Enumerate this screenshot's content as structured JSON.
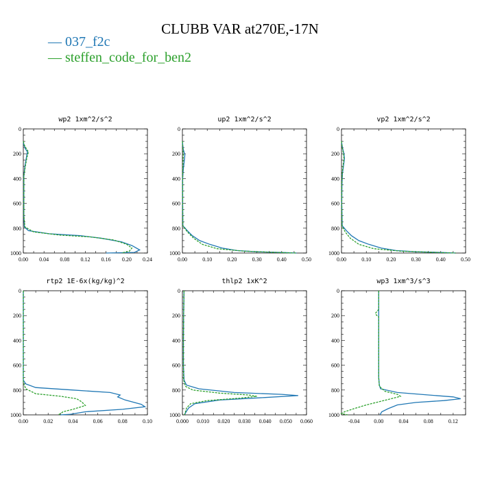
{
  "title": "CLUBB VAR at270E,-17N",
  "legend": [
    {
      "label": "— 037_f2c",
      "color": "#1f77b4"
    },
    {
      "label": "— steffen_code_for_ben2",
      "color": "#2ca02c"
    }
  ],
  "chart_data": [
    {
      "type": "line",
      "title": "wp2  1xm^2/s^2",
      "xlim": [
        0,
        0.24
      ],
      "ylim": [
        1000,
        0
      ],
      "xticks": [
        "0.00",
        "0.04",
        "0.08",
        "0.12",
        "0.16",
        "0.20",
        "0.24"
      ],
      "xtick_values": [
        0,
        0.04,
        0.08,
        0.12,
        0.16,
        0.2,
        0.24
      ],
      "yticks": [
        0,
        200,
        400,
        600,
        800,
        1000
      ],
      "series": [
        {
          "name": "037_f2c",
          "color": "#1f77b4",
          "dashed": false,
          "points": [
            [
              0.0,
              100
            ],
            [
              0.001,
              130
            ],
            [
              0.004,
              160
            ],
            [
              0.008,
              185
            ],
            [
              0.006,
              230
            ],
            [
              0.003,
              300
            ],
            [
              0.001,
              380
            ],
            [
              0.001,
              500
            ],
            [
              0.001,
              700
            ],
            [
              0.002,
              790
            ],
            [
              0.01,
              820
            ],
            [
              0.05,
              845
            ],
            [
              0.11,
              860
            ],
            [
              0.15,
              880
            ],
            [
              0.19,
              910
            ],
            [
              0.21,
              940
            ],
            [
              0.225,
              975
            ],
            [
              0.215,
              995
            ],
            [
              0.16,
              1000
            ]
          ]
        },
        {
          "name": "steffen_code_for_ben2",
          "color": "#2ca02c",
          "dashed": true,
          "points": [
            [
              0.0,
              100
            ],
            [
              0.002,
              130
            ],
            [
              0.006,
              160
            ],
            [
              0.01,
              185
            ],
            [
              0.007,
              230
            ],
            [
              0.004,
              300
            ],
            [
              0.001,
              380
            ],
            [
              0.001,
              500
            ],
            [
              0.001,
              700
            ],
            [
              0.003,
              790
            ],
            [
              0.02,
              830
            ],
            [
              0.07,
              855
            ],
            [
              0.13,
              870
            ],
            [
              0.175,
              895
            ],
            [
              0.2,
              930
            ],
            [
              0.21,
              960
            ],
            [
              0.205,
              985
            ],
            [
              0.19,
              1000
            ]
          ]
        }
      ]
    },
    {
      "type": "line",
      "title": "up2  1xm^2/s^2",
      "xlim": [
        0,
        0.5
      ],
      "ylim": [
        1000,
        0
      ],
      "xticks": [
        "0.00",
        "0.10",
        "0.20",
        "0.30",
        "0.40",
        "0.50"
      ],
      "xtick_values": [
        0,
        0.1,
        0.2,
        0.3,
        0.4,
        0.5
      ],
      "yticks": [
        0,
        200,
        400,
        600,
        800,
        1000
      ],
      "series": [
        {
          "name": "037_f2c",
          "color": "#1f77b4",
          "dashed": false,
          "points": [
            [
              0.0,
              100
            ],
            [
              0.003,
              160
            ],
            [
              0.01,
              210
            ],
            [
              0.008,
              250
            ],
            [
              0.005,
              300
            ],
            [
              0.003,
              340
            ],
            [
              0.001,
              400
            ],
            [
              0.001,
              600
            ],
            [
              0.002,
              780
            ],
            [
              0.02,
              820
            ],
            [
              0.04,
              860
            ],
            [
              0.07,
              900
            ],
            [
              0.11,
              930
            ],
            [
              0.16,
              960
            ],
            [
              0.22,
              980
            ],
            [
              0.3,
              990
            ],
            [
              0.4,
              995
            ],
            [
              0.46,
              1000
            ]
          ]
        },
        {
          "name": "steffen_code_for_ben2",
          "color": "#2ca02c",
          "dashed": true,
          "points": [
            [
              0.0,
              100
            ],
            [
              0.002,
              160
            ],
            [
              0.004,
              210
            ],
            [
              0.003,
              250
            ],
            [
              0.002,
              300
            ],
            [
              0.001,
              400
            ],
            [
              0.001,
              600
            ],
            [
              0.002,
              780
            ],
            [
              0.02,
              830
            ],
            [
              0.045,
              880
            ],
            [
              0.08,
              930
            ],
            [
              0.14,
              965
            ],
            [
              0.25,
              985
            ],
            [
              0.38,
              995
            ],
            [
              0.46,
              1000
            ]
          ]
        }
      ]
    },
    {
      "type": "line",
      "title": "vp2  1xm^2/s^2",
      "xlim": [
        0,
        0.5
      ],
      "ylim": [
        1000,
        0
      ],
      "xticks": [
        "0.00",
        "0.10",
        "0.20",
        "0.30",
        "0.40",
        "0.50"
      ],
      "xtick_values": [
        0,
        0.1,
        0.2,
        0.3,
        0.4,
        0.5
      ],
      "yticks": [
        0,
        200,
        400,
        600,
        800,
        1000
      ],
      "series": [
        {
          "name": "037_f2c",
          "color": "#1f77b4",
          "dashed": false,
          "points": [
            [
              0.0,
              100
            ],
            [
              0.004,
              150
            ],
            [
              0.01,
              200
            ],
            [
              0.012,
              240
            ],
            [
              0.008,
              300
            ],
            [
              0.004,
              360
            ],
            [
              0.002,
              450
            ],
            [
              0.001,
              600
            ],
            [
              0.003,
              780
            ],
            [
              0.02,
              820
            ],
            [
              0.04,
              860
            ],
            [
              0.07,
              900
            ],
            [
              0.11,
              930
            ],
            [
              0.16,
              960
            ],
            [
              0.22,
              980
            ],
            [
              0.3,
              990
            ],
            [
              0.4,
              995
            ],
            [
              0.46,
              1000
            ]
          ]
        },
        {
          "name": "steffen_code_for_ben2",
          "color": "#2ca02c",
          "dashed": true,
          "points": [
            [
              0.0,
              100
            ],
            [
              0.003,
              150
            ],
            [
              0.008,
              200
            ],
            [
              0.01,
              240
            ],
            [
              0.006,
              300
            ],
            [
              0.003,
              360
            ],
            [
              0.001,
              450
            ],
            [
              0.001,
              600
            ],
            [
              0.002,
              780
            ],
            [
              0.015,
              830
            ],
            [
              0.035,
              880
            ],
            [
              0.07,
              930
            ],
            [
              0.13,
              965
            ],
            [
              0.24,
              985
            ],
            [
              0.38,
              995
            ],
            [
              0.46,
              1000
            ]
          ]
        }
      ]
    },
    {
      "type": "line",
      "title": "rtp2  1E-6x(kg/kg)^2",
      "xlim": [
        0,
        0.1
      ],
      "ylim": [
        1000,
        0
      ],
      "xticks": [
        "0.00",
        "0.02",
        "0.04",
        "0.06",
        "0.08",
        "0.10"
      ],
      "xtick_values": [
        0,
        0.02,
        0.04,
        0.06,
        0.08,
        0.1
      ],
      "yticks": [
        0,
        200,
        400,
        600,
        800,
        1000
      ],
      "series": [
        {
          "name": "037_f2c",
          "color": "#1f77b4",
          "dashed": false,
          "points": [
            [
              0.0,
              0
            ],
            [
              0.0,
              500
            ],
            [
              0.0,
              720
            ],
            [
              0.002,
              750
            ],
            [
              0.01,
              780
            ],
            [
              0.04,
              800
            ],
            [
              0.07,
              820
            ],
            [
              0.078,
              840
            ],
            [
              0.076,
              855
            ],
            [
              0.082,
              880
            ],
            [
              0.095,
              915
            ],
            [
              0.098,
              935
            ],
            [
              0.08,
              955
            ],
            [
              0.05,
              975
            ],
            [
              0.038,
              995
            ],
            [
              0.03,
              1000
            ]
          ]
        },
        {
          "name": "steffen_code_for_ben2",
          "color": "#2ca02c",
          "dashed": true,
          "points": [
            [
              0.0,
              0
            ],
            [
              0.0,
              500
            ],
            [
              0.0,
              740
            ],
            [
              0.002,
              790
            ],
            [
              0.01,
              830
            ],
            [
              0.03,
              850
            ],
            [
              0.043,
              870
            ],
            [
              0.047,
              895
            ],
            [
              0.05,
              925
            ],
            [
              0.04,
              955
            ],
            [
              0.032,
              975
            ],
            [
              0.03,
              990
            ],
            [
              0.028,
              1000
            ]
          ]
        }
      ]
    },
    {
      "type": "line",
      "title": "thlp2  1xK^2",
      "xlim": [
        0,
        0.06
      ],
      "ylim": [
        1000,
        0
      ],
      "xticks": [
        "0.000",
        "0.010",
        "0.020",
        "0.030",
        "0.040",
        "0.050",
        "0.060"
      ],
      "xtick_values": [
        0,
        0.01,
        0.02,
        0.03,
        0.04,
        0.05,
        0.06
      ],
      "yticks": [
        0,
        200,
        400,
        600,
        800,
        1000
      ],
      "series": [
        {
          "name": "037_f2c",
          "color": "#1f77b4",
          "dashed": false,
          "points": [
            [
              0.0008,
              0
            ],
            [
              0.0006,
              200
            ],
            [
              0.0005,
              400
            ],
            [
              0.0005,
              600
            ],
            [
              0.0008,
              720
            ],
            [
              0.002,
              760
            ],
            [
              0.008,
              790
            ],
            [
              0.025,
              820
            ],
            [
              0.048,
              835
            ],
            [
              0.056,
              845
            ],
            [
              0.04,
              860
            ],
            [
              0.018,
              880
            ],
            [
              0.006,
              910
            ],
            [
              0.003,
              945
            ],
            [
              0.002,
              970
            ],
            [
              0.001,
              1000
            ]
          ]
        },
        {
          "name": "steffen_code_for_ben2",
          "color": "#2ca02c",
          "dashed": true,
          "points": [
            [
              0.0008,
              0
            ],
            [
              0.0006,
              200
            ],
            [
              0.0005,
              400
            ],
            [
              0.0005,
              600
            ],
            [
              0.0006,
              720
            ],
            [
              0.0015,
              770
            ],
            [
              0.005,
              800
            ],
            [
              0.018,
              825
            ],
            [
              0.032,
              840
            ],
            [
              0.036,
              850
            ],
            [
              0.028,
              865
            ],
            [
              0.012,
              885
            ],
            [
              0.004,
              910
            ],
            [
              0.002,
              945
            ],
            [
              0.0015,
              975
            ],
            [
              0.001,
              1000
            ]
          ]
        }
      ]
    },
    {
      "type": "line",
      "title": "wp3  1xm^3/s^3",
      "xlim": [
        -0.06,
        0.14
      ],
      "ylim": [
        1000,
        0
      ],
      "xticks": [
        "-0.04",
        "0.00",
        "0.04",
        "0.08",
        "0.12"
      ],
      "xtick_values": [
        -0.04,
        0,
        0.04,
        0.08,
        0.12
      ],
      "yticks": [
        0,
        200,
        400,
        600,
        800,
        1000
      ],
      "series": [
        {
          "name": "037_f2c",
          "color": "#1f77b4",
          "dashed": false,
          "points": [
            [
              0.0,
              0
            ],
            [
              0.0,
              500
            ],
            [
              0.0,
              700
            ],
            [
              0.001,
              760
            ],
            [
              0.003,
              790
            ],
            [
              0.03,
              820
            ],
            [
              0.08,
              840
            ],
            [
              0.12,
              855
            ],
            [
              0.132,
              870
            ],
            [
              0.105,
              885
            ],
            [
              0.06,
              900
            ],
            [
              0.03,
              920
            ],
            [
              0.015,
              950
            ],
            [
              0.005,
              975
            ],
            [
              0.002,
              1000
            ]
          ]
        },
        {
          "name": "steffen_code_for_ben2",
          "color": "#2ca02c",
          "dashed": true,
          "points": [
            [
              0.0,
              0
            ],
            [
              0.0,
              150
            ],
            [
              -0.005,
              180
            ],
            [
              -0.004,
              195
            ],
            [
              0.0,
              210
            ],
            [
              0.0,
              400
            ],
            [
              0.0,
              700
            ],
            [
              0.001,
              770
            ],
            [
              0.01,
              810
            ],
            [
              0.03,
              835
            ],
            [
              0.035,
              850
            ],
            [
              0.02,
              870
            ],
            [
              0.0,
              895
            ],
            [
              -0.02,
              920
            ],
            [
              -0.04,
              950
            ],
            [
              -0.055,
              975
            ],
            [
              -0.06,
              990
            ],
            [
              -0.05,
              1000
            ]
          ]
        }
      ]
    }
  ]
}
